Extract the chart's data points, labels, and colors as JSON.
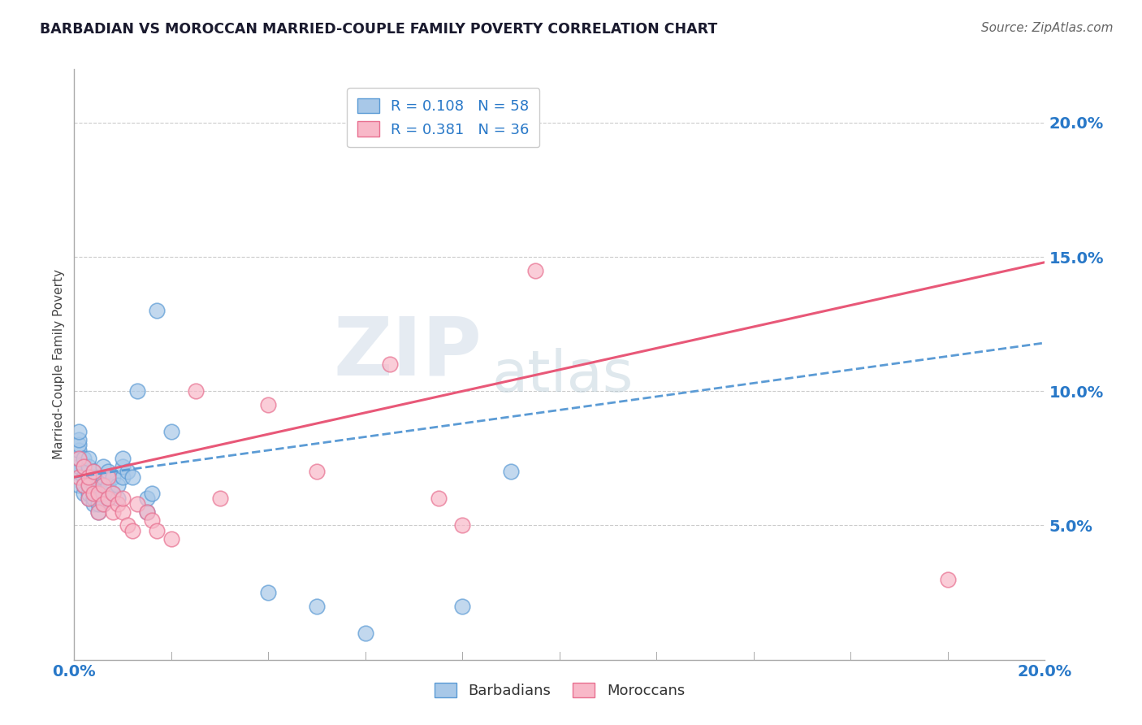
{
  "title": "BARBADIAN VS MOROCCAN MARRIED-COUPLE FAMILY POVERTY CORRELATION CHART",
  "source": "Source: ZipAtlas.com",
  "ylabel": "Married-Couple Family Poverty",
  "watermark_zip": "ZIP",
  "watermark_atlas": "atlas",
  "blue_label": "Barbadians",
  "pink_label": "Moroccans",
  "blue_R": "0.108",
  "blue_N": "58",
  "pink_R": "0.381",
  "pink_N": "36",
  "blue_color": "#a8c8e8",
  "pink_color": "#f8b8c8",
  "blue_edge_color": "#5b9bd5",
  "pink_edge_color": "#e87090",
  "blue_line_color": "#5b9bd5",
  "pink_line_color": "#e85878",
  "legend_color": "#2878c8",
  "ytick_color": "#2878c8",
  "xtick_color": "#2878c8",
  "blue_x": [
    0.001,
    0.001,
    0.001,
    0.001,
    0.001,
    0.001,
    0.001,
    0.001,
    0.002,
    0.002,
    0.002,
    0.002,
    0.002,
    0.003,
    0.003,
    0.003,
    0.003,
    0.003,
    0.003,
    0.003,
    0.004,
    0.004,
    0.004,
    0.004,
    0.004,
    0.004,
    0.005,
    0.005,
    0.005,
    0.005,
    0.005,
    0.006,
    0.006,
    0.006,
    0.006,
    0.007,
    0.007,
    0.007,
    0.008,
    0.008,
    0.009,
    0.009,
    0.01,
    0.01,
    0.01,
    0.011,
    0.012,
    0.013,
    0.015,
    0.015,
    0.016,
    0.017,
    0.02,
    0.04,
    0.05,
    0.06,
    0.08,
    0.09
  ],
  "blue_y": [
    0.065,
    0.07,
    0.072,
    0.075,
    0.078,
    0.08,
    0.082,
    0.085,
    0.062,
    0.065,
    0.068,
    0.072,
    0.075,
    0.06,
    0.062,
    0.065,
    0.068,
    0.07,
    0.072,
    0.075,
    0.058,
    0.06,
    0.062,
    0.065,
    0.068,
    0.07,
    0.055,
    0.058,
    0.062,
    0.065,
    0.068,
    0.058,
    0.062,
    0.068,
    0.072,
    0.06,
    0.065,
    0.07,
    0.062,
    0.068,
    0.06,
    0.065,
    0.068,
    0.072,
    0.075,
    0.07,
    0.068,
    0.1,
    0.055,
    0.06,
    0.062,
    0.13,
    0.085,
    0.025,
    0.02,
    0.01,
    0.02,
    0.07
  ],
  "pink_x": [
    0.001,
    0.001,
    0.002,
    0.002,
    0.003,
    0.003,
    0.003,
    0.004,
    0.004,
    0.005,
    0.005,
    0.006,
    0.006,
    0.007,
    0.007,
    0.008,
    0.008,
    0.009,
    0.01,
    0.01,
    0.011,
    0.012,
    0.013,
    0.015,
    0.016,
    0.017,
    0.02,
    0.025,
    0.03,
    0.04,
    0.05,
    0.065,
    0.075,
    0.08,
    0.095,
    0.18
  ],
  "pink_y": [
    0.068,
    0.075,
    0.065,
    0.072,
    0.06,
    0.065,
    0.068,
    0.062,
    0.07,
    0.055,
    0.062,
    0.058,
    0.065,
    0.06,
    0.068,
    0.055,
    0.062,
    0.058,
    0.055,
    0.06,
    0.05,
    0.048,
    0.058,
    0.055,
    0.052,
    0.048,
    0.045,
    0.1,
    0.06,
    0.095,
    0.07,
    0.11,
    0.06,
    0.05,
    0.145,
    0.03
  ],
  "xlim": [
    0.0,
    0.2
  ],
  "ylim": [
    0.0,
    0.22
  ],
  "yticks": [
    0.05,
    0.1,
    0.15,
    0.2
  ],
  "ytick_labels": [
    "5.0%",
    "10.0%",
    "15.0%",
    "20.0%"
  ],
  "background_color": "#ffffff",
  "grid_color": "#cccccc"
}
